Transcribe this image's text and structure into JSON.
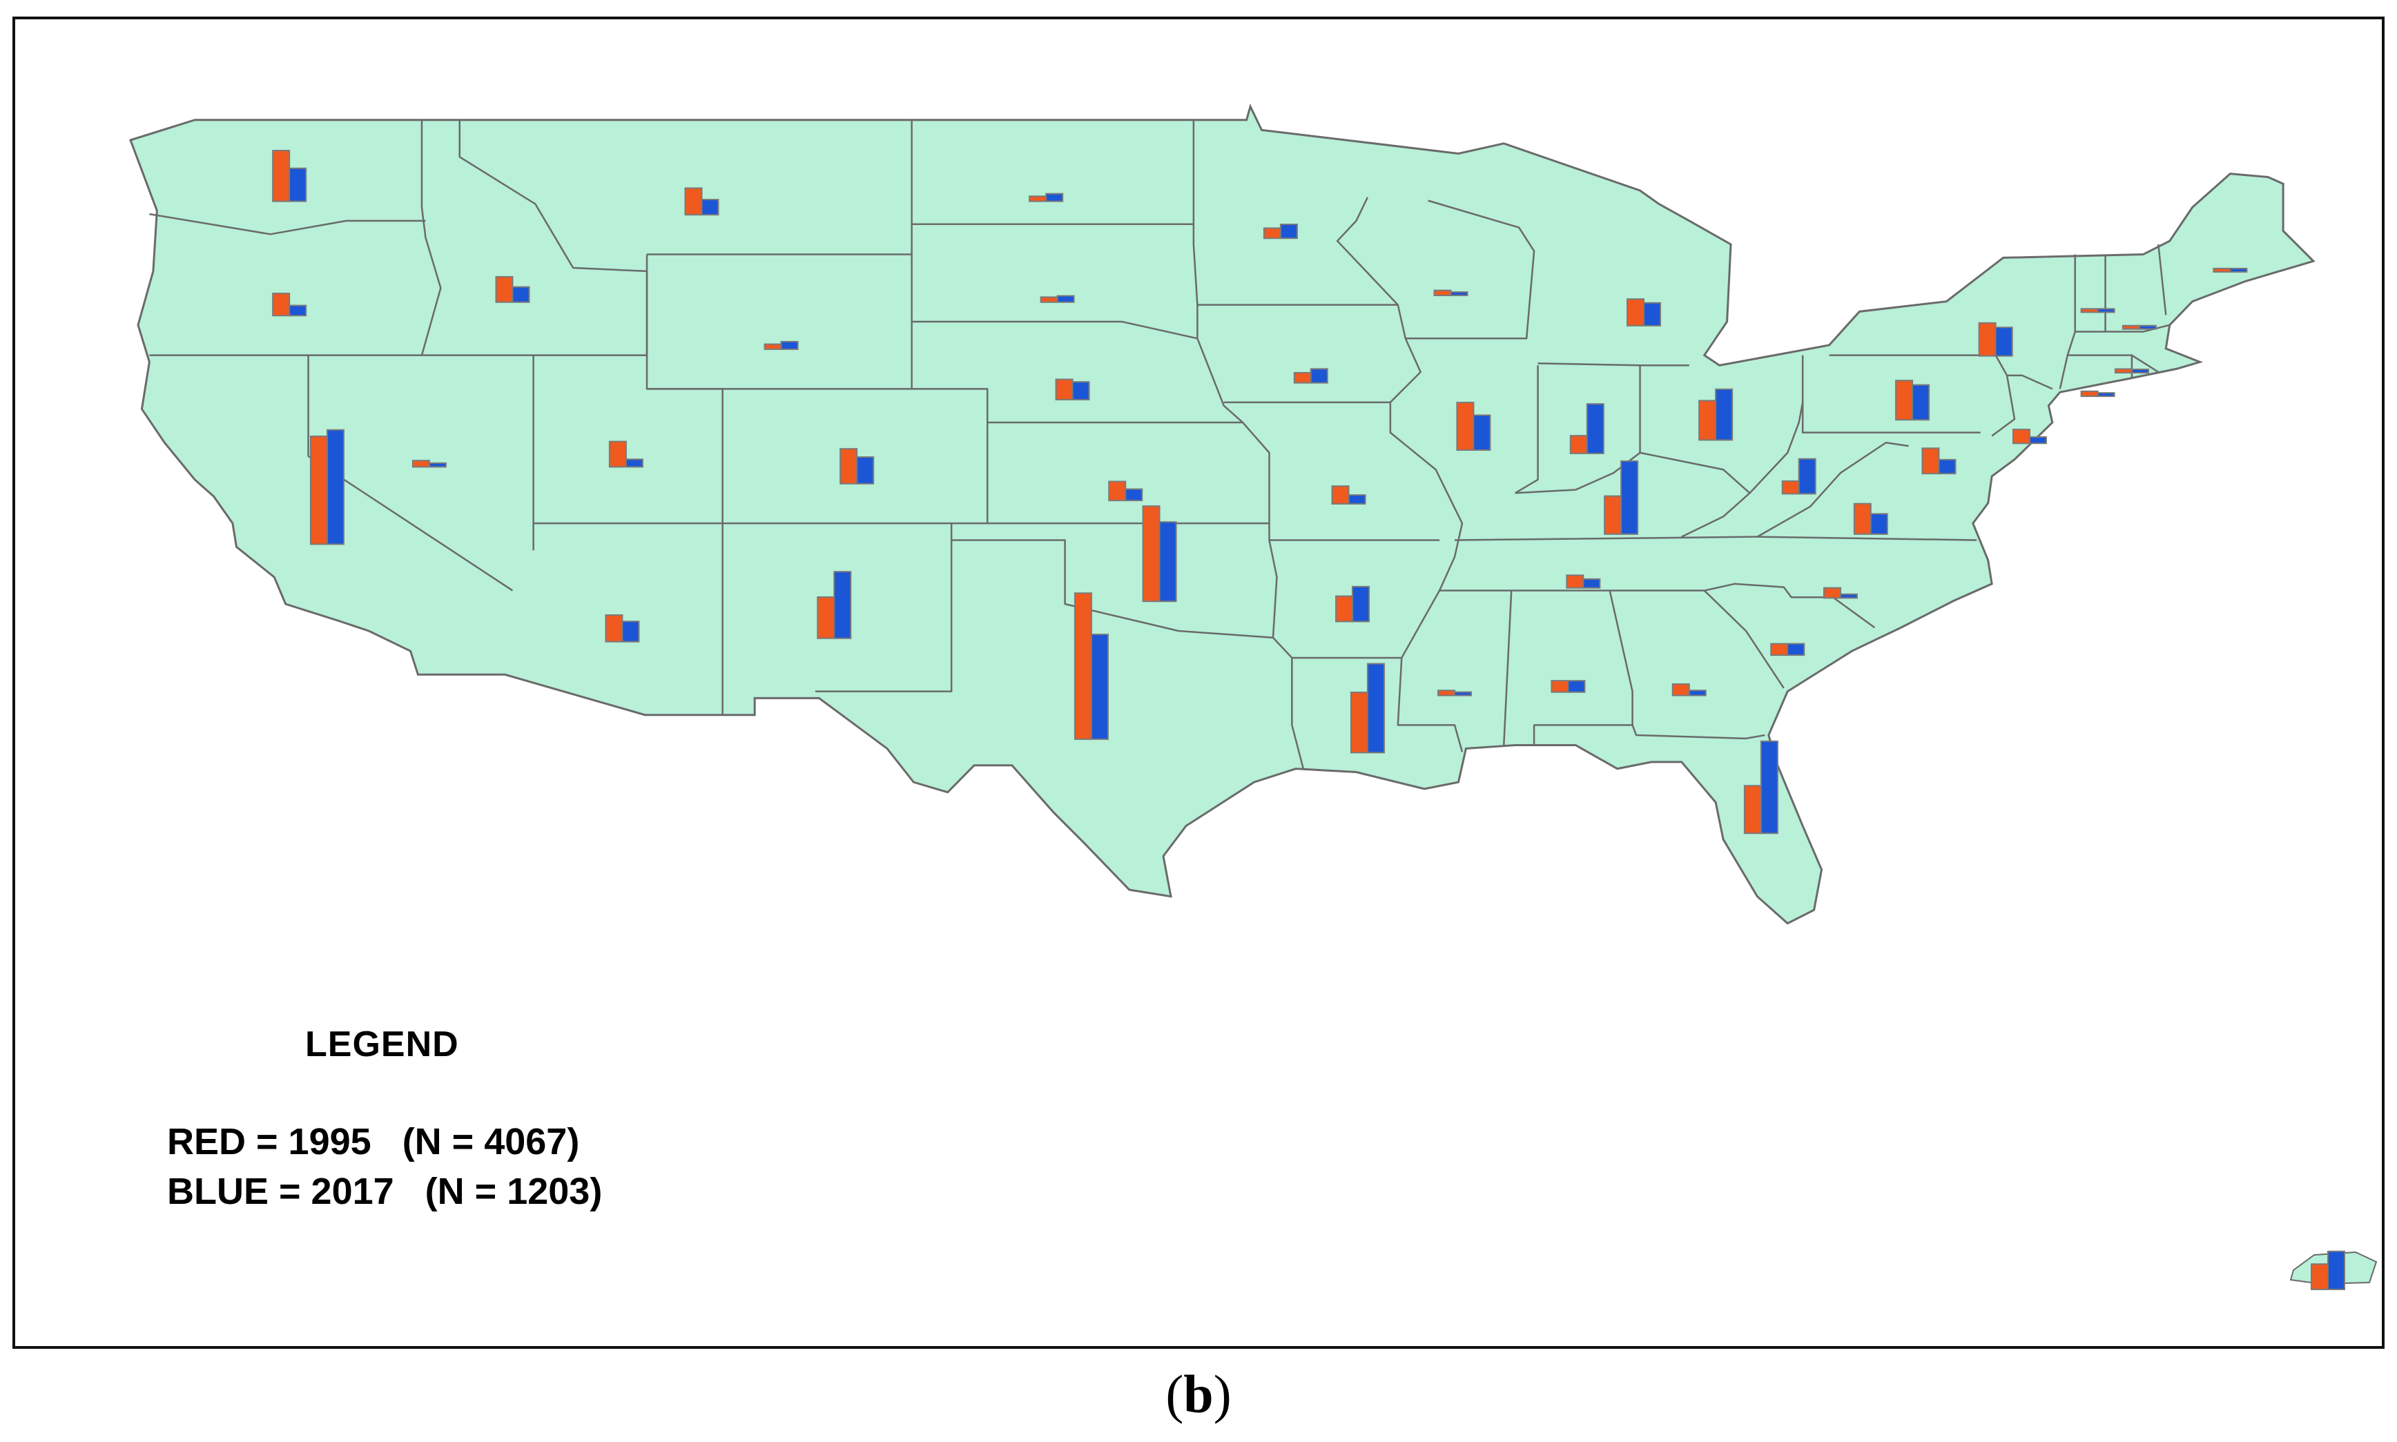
{
  "legend": {
    "title": "LEGEND",
    "red_line": "RED = 1995   (N = 4067)",
    "blue_line": "BLUE = 2017   (N = 1203)"
  },
  "caption": {
    "open": "(",
    "letter": "b",
    "close": ")"
  },
  "colors": {
    "land": "#b8f0d8",
    "state_border": "#6a6a6a",
    "series_1995": "#f05a1e",
    "series_2017": "#1a56d6",
    "bar_outline": "#7a7a7a"
  },
  "chart_data": {
    "type": "bar",
    "map_type": "choropleth-free bar map of contiguous United States with Puerto Rico inset",
    "series": [
      {
        "name": "RED = 1995",
        "color": "#f05a1e"
      },
      {
        "name": "BLUE = 2017",
        "color": "#1a56d6"
      }
    ],
    "legend_placement": "bottom-left",
    "states": [
      {
        "state": "WA",
        "v1995": 80,
        "v2017": 52,
        "lon": -120.5,
        "lat": 47.4
      },
      {
        "state": "OR",
        "v1995": 35,
        "v2017": 16,
        "lon": -120.5,
        "lat": 44.0
      },
      {
        "state": "ID",
        "v1995": 40,
        "v2017": 24,
        "lon": -114.6,
        "lat": 44.4
      },
      {
        "state": "MT",
        "v1995": 42,
        "v2017": 24,
        "lon": -109.6,
        "lat": 47.0
      },
      {
        "state": "WY",
        "v1995": 8,
        "v2017": 12,
        "lon": -107.5,
        "lat": 43.0
      },
      {
        "state": "ND",
        "v1995": 8,
        "v2017": 12,
        "lon": -100.5,
        "lat": 47.4
      },
      {
        "state": "SD",
        "v1995": 8,
        "v2017": 10,
        "lon": -100.2,
        "lat": 44.4
      },
      {
        "state": "NE",
        "v1995": 32,
        "v2017": 28,
        "lon": -99.8,
        "lat": 41.5
      },
      {
        "state": "KS",
        "v1995": 30,
        "v2017": 18,
        "lon": -98.4,
        "lat": 38.5
      },
      {
        "state": "OK",
        "v1995": 150,
        "v2017": 125,
        "lon": -97.5,
        "lat": 35.5
      },
      {
        "state": "TX",
        "v1995": 230,
        "v2017": 165,
        "lon": -99.3,
        "lat": 31.4
      },
      {
        "state": "CA",
        "v1995": 170,
        "v2017": 180,
        "lon": -119.5,
        "lat": 37.2
      },
      {
        "state": "NV",
        "v1995": 10,
        "v2017": 6,
        "lon": -116.8,
        "lat": 39.5
      },
      {
        "state": "UT",
        "v1995": 40,
        "v2017": 12,
        "lon": -111.6,
        "lat": 39.5
      },
      {
        "state": "CO",
        "v1995": 55,
        "v2017": 42,
        "lon": -105.5,
        "lat": 39.0
      },
      {
        "state": "AZ",
        "v1995": 42,
        "v2017": 32,
        "lon": -111.7,
        "lat": 34.3
      },
      {
        "state": "NM",
        "v1995": 65,
        "v2017": 105,
        "lon": -106.1,
        "lat": 34.4
      },
      {
        "state": "MN",
        "v1995": 16,
        "v2017": 22,
        "lon": -94.3,
        "lat": 46.3
      },
      {
        "state": "IA",
        "v1995": 16,
        "v2017": 22,
        "lon": -93.5,
        "lat": 42.0
      },
      {
        "state": "MO",
        "v1995": 28,
        "v2017": 14,
        "lon": -92.5,
        "lat": 38.4
      },
      {
        "state": "AR",
        "v1995": 40,
        "v2017": 55,
        "lon": -92.4,
        "lat": 34.9
      },
      {
        "state": "LA",
        "v1995": 95,
        "v2017": 140,
        "lon": -92.0,
        "lat": 31.0
      },
      {
        "state": "WI",
        "v1995": 8,
        "v2017": 4,
        "lon": -89.8,
        "lat": 44.6
      },
      {
        "state": "IL",
        "v1995": 75,
        "v2017": 55,
        "lon": -89.2,
        "lat": 40.0
      },
      {
        "state": "MI",
        "v1995": 42,
        "v2017": 36,
        "lon": -84.7,
        "lat": 43.7
      },
      {
        "state": "IN",
        "v1995": 28,
        "v2017": 78,
        "lon": -86.2,
        "lat": 39.9
      },
      {
        "state": "OH",
        "v1995": 62,
        "v2017": 80,
        "lon": -82.8,
        "lat": 40.3
      },
      {
        "state": "KY",
        "v1995": 60,
        "v2017": 115,
        "lon": -85.3,
        "lat": 37.5
      },
      {
        "state": "TN",
        "v1995": 20,
        "v2017": 14,
        "lon": -86.3,
        "lat": 35.9
      },
      {
        "state": "MS",
        "v1995": 8,
        "v2017": 4,
        "lon": -89.7,
        "lat": 32.7
      },
      {
        "state": "AL",
        "v1995": 18,
        "v2017": 18,
        "lon": -86.7,
        "lat": 32.8
      },
      {
        "state": "GA",
        "v1995": 18,
        "v2017": 8,
        "lon": -83.5,
        "lat": 32.7
      },
      {
        "state": "FL",
        "v1995": 75,
        "v2017": 145,
        "lon": -81.6,
        "lat": 28.6
      },
      {
        "state": "SC",
        "v1995": 18,
        "v2017": 18,
        "lon": -80.9,
        "lat": 33.9
      },
      {
        "state": "NC",
        "v1995": 16,
        "v2017": 6,
        "lon": -79.5,
        "lat": 35.6
      },
      {
        "state": "VA",
        "v1995": 48,
        "v2017": 32,
        "lon": -78.7,
        "lat": 37.5
      },
      {
        "state": "WV",
        "v1995": 20,
        "v2017": 55,
        "lon": -80.6,
        "lat": 38.7
      },
      {
        "state": "PA",
        "v1995": 62,
        "v2017": 55,
        "lon": -77.6,
        "lat": 40.9
      },
      {
        "state": "NY",
        "v1995": 52,
        "v2017": 45,
        "lon": -75.4,
        "lat": 42.8
      },
      {
        "state": "MD",
        "v1995": 40,
        "v2017": 22,
        "lon": -76.9,
        "lat": 39.3
      },
      {
        "state": "NJ",
        "v1995": 22,
        "v2017": 10,
        "lon": -74.5,
        "lat": 40.2
      },
      {
        "state": "CT",
        "v1995": 8,
        "v2017": 4,
        "lon": -72.7,
        "lat": 41.6
      },
      {
        "state": "MA",
        "v1995": 6,
        "v2017": 3,
        "lon": -71.8,
        "lat": 42.3
      },
      {
        "state": "VT",
        "v1995": 2,
        "v2017": 2,
        "lon": -72.7,
        "lat": 44.1
      },
      {
        "state": "NH",
        "v1995": 2,
        "v2017": 2,
        "lon": -71.6,
        "lat": 43.6
      },
      {
        "state": "ME",
        "v1995": 2,
        "v2017": 2,
        "lon": -69.2,
        "lat": 45.3
      },
      {
        "state": "PR",
        "v1995": 40,
        "v2017": 60,
        "lon": -66.5,
        "lat": 18.2
      }
    ]
  }
}
